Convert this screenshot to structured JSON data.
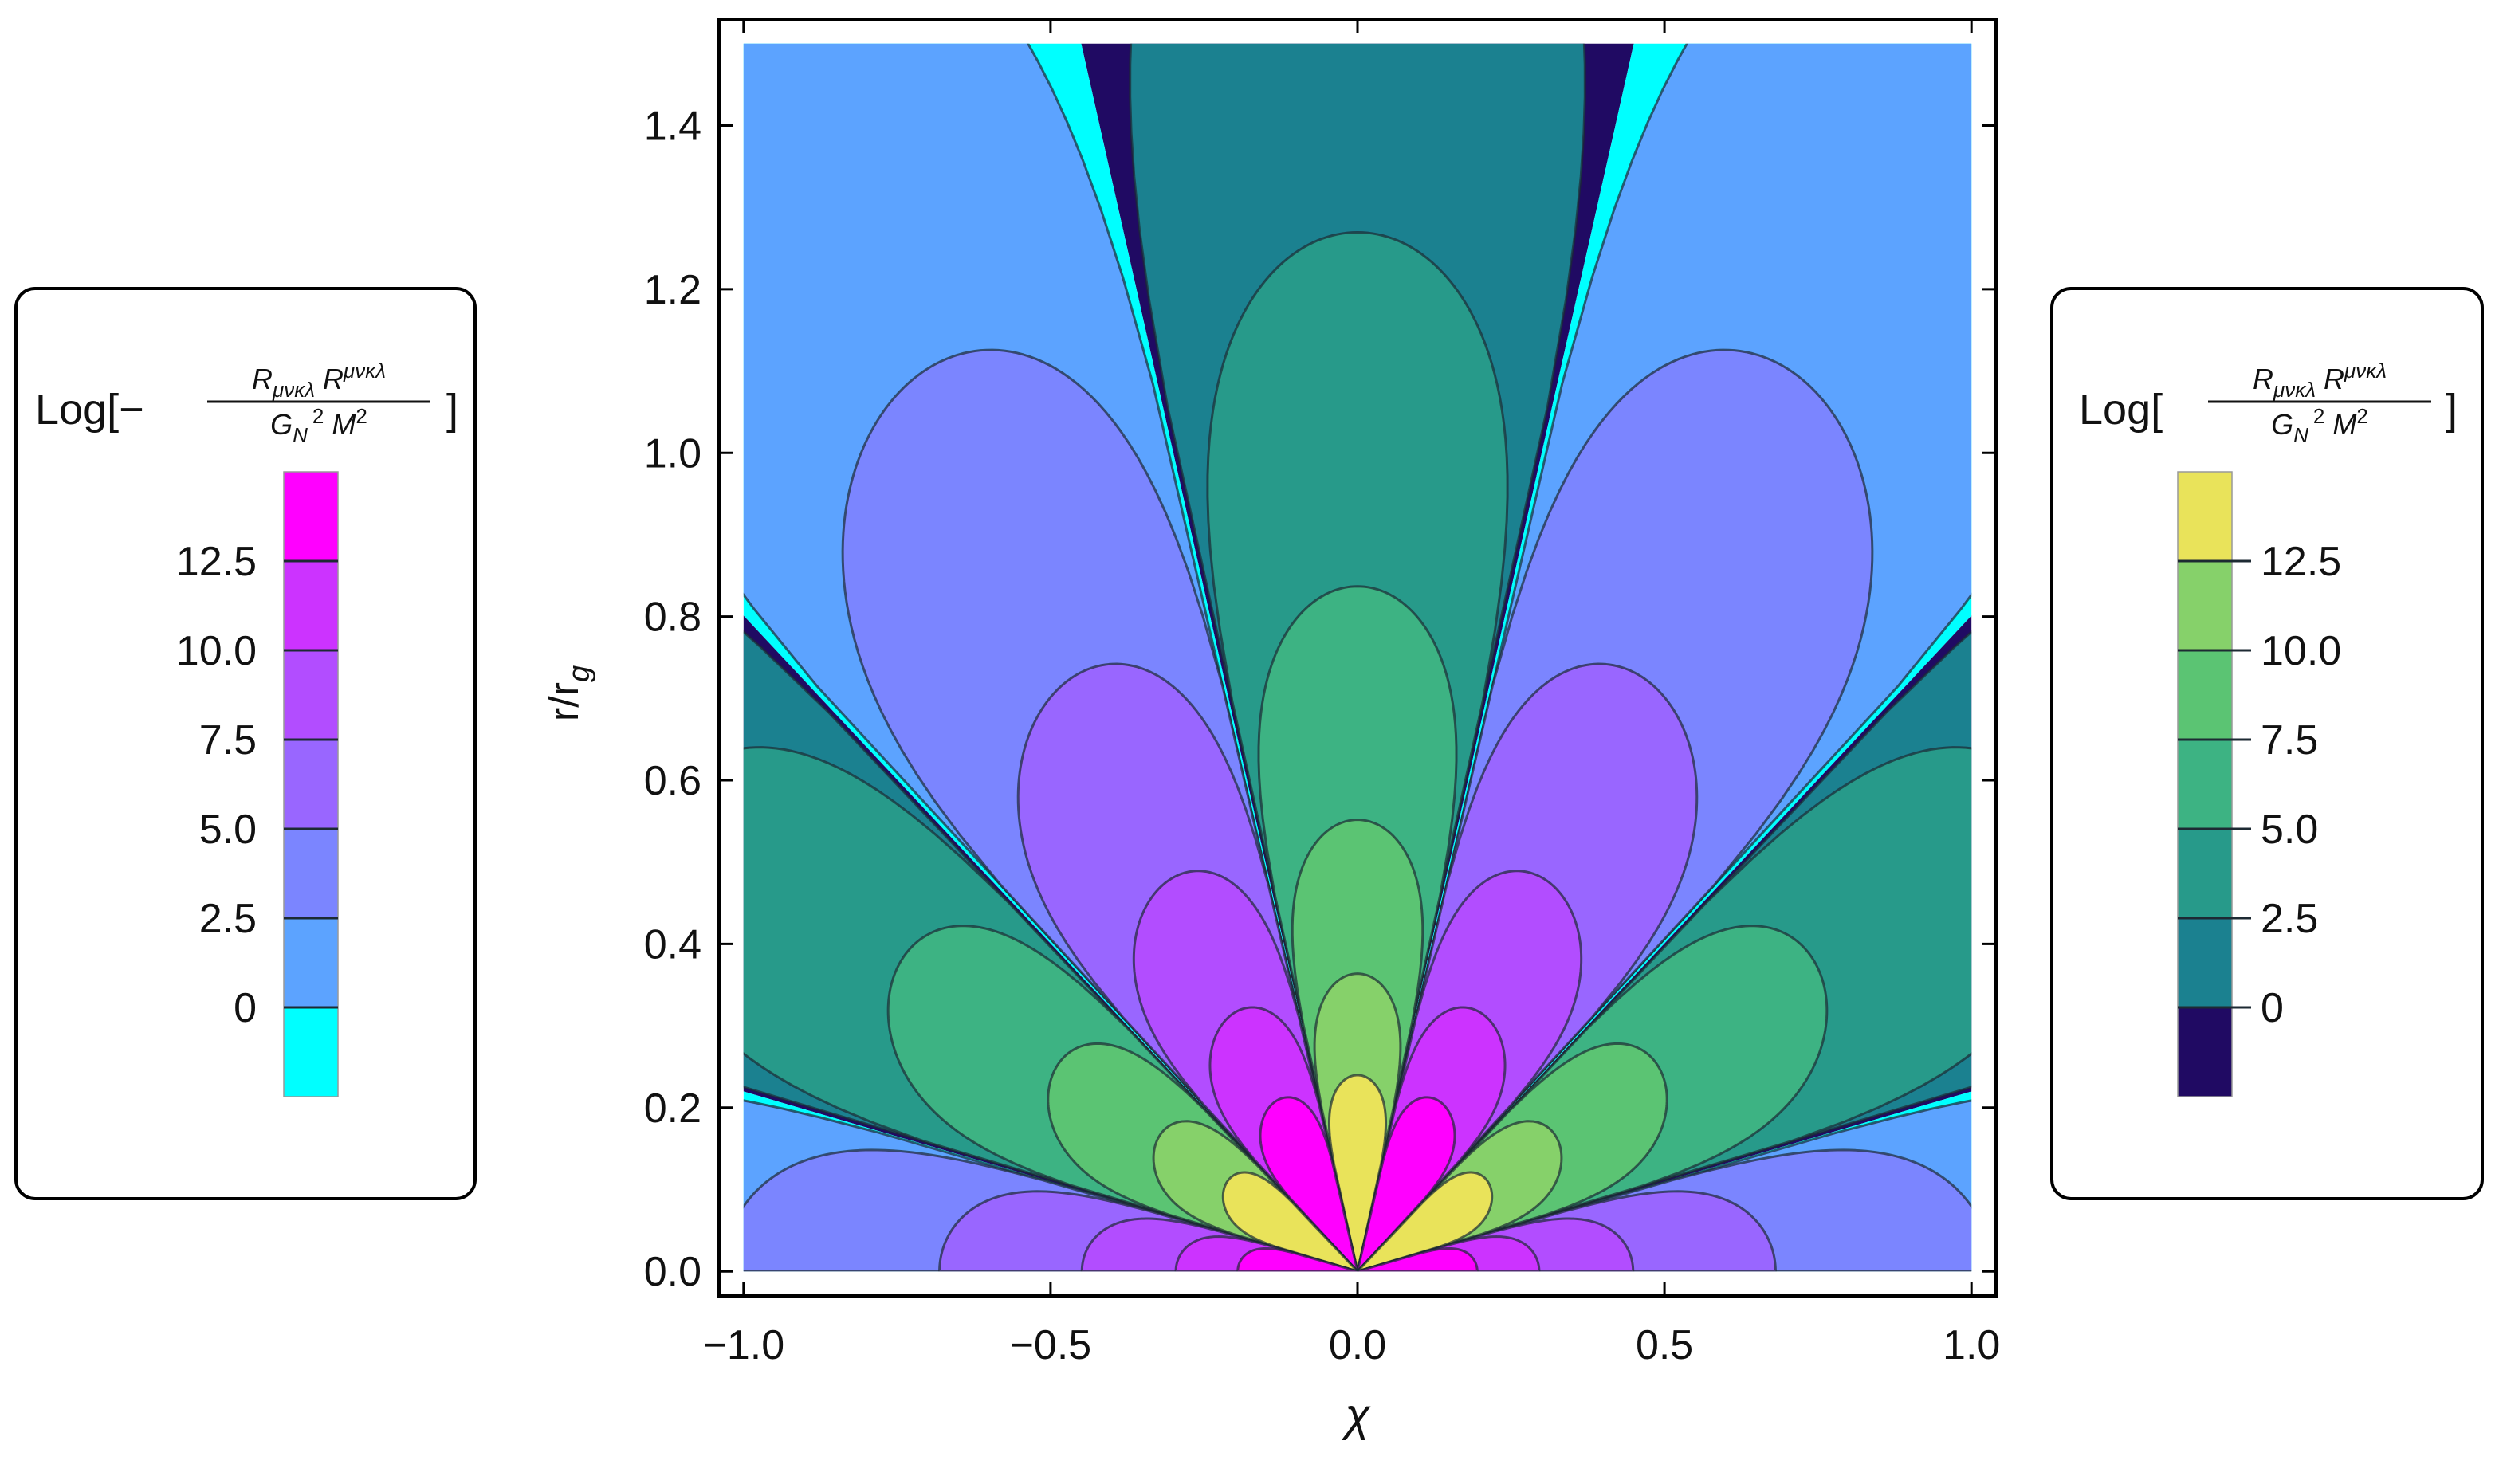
{
  "chart_data": {
    "type": "contour",
    "x_label": "χ",
    "y_label": "r/r",
    "y_label_subscript": "g",
    "xlim": [
      -1.04,
      1.04
    ],
    "ylim": [
      -0.03,
      1.53
    ],
    "domain": {
      "x": [
        -1,
        1
      ],
      "y": [
        0,
        1.5
      ]
    },
    "xticks": [
      {
        "value": -1,
        "label": "−1.0"
      },
      {
        "value": -0.5,
        "label": "−0.5"
      },
      {
        "value": 0,
        "label": "0.0"
      },
      0.5,
      {
        "value": 1,
        "label": "1.0"
      }
    ],
    "yticks": [
      {
        "value": 0,
        "label": "0.0"
      },
      0.2,
      0.4,
      0.6,
      0.8,
      {
        "value": 1,
        "label": "1.0"
      },
      1.2,
      1.4
    ],
    "legends": [
      {
        "position": "left",
        "title": {
          "open": "Log[−",
          "num_base1": "R",
          "num_sub": "μνκλ",
          "num_base2": "R",
          "num_sup": "μνκλ",
          "den_base1": "G",
          "den_sub": "N",
          "den_sup1": "2",
          "den_base2": "M",
          "den_sup2": "2",
          "close": "]"
        },
        "lim": [
          -2.5,
          15
        ],
        "ticks": [
          {
            "value": 0,
            "label": "0"
          },
          2.5,
          {
            "value": 5,
            "label": "5.0"
          },
          7.5,
          {
            "value": 10,
            "label": "10.0"
          },
          12.5
        ],
        "colors": [
          "#00ffff",
          "#5ca3ff",
          "#7b85ff",
          "#9966ff",
          "#b24dff",
          "#cc33ff",
          "#ff00ff"
        ]
      },
      {
        "position": "right",
        "title": {
          "open": "Log[",
          "num_base1": "R",
          "num_sub": "μνκλ",
          "num_base2": "R",
          "num_sup": "μνκλ",
          "den_base1": "G",
          "den_sub": "N",
          "den_sup1": "2",
          "den_base2": "M",
          "den_sup2": "2",
          "close": "]"
        },
        "lim": [
          -2.5,
          15
        ],
        "ticks": [
          {
            "value": 0,
            "label": "0"
          },
          2.5,
          {
            "value": 5,
            "label": "5.0"
          },
          7.5,
          {
            "value": 10,
            "label": "10.0"
          },
          12.5
        ],
        "colors": [
          "#200a63",
          "#1b8190",
          "#279a8a",
          "#3db383",
          "#5bc473",
          "#86d16a",
          "#e9e35a"
        ]
      }
    ]
  }
}
